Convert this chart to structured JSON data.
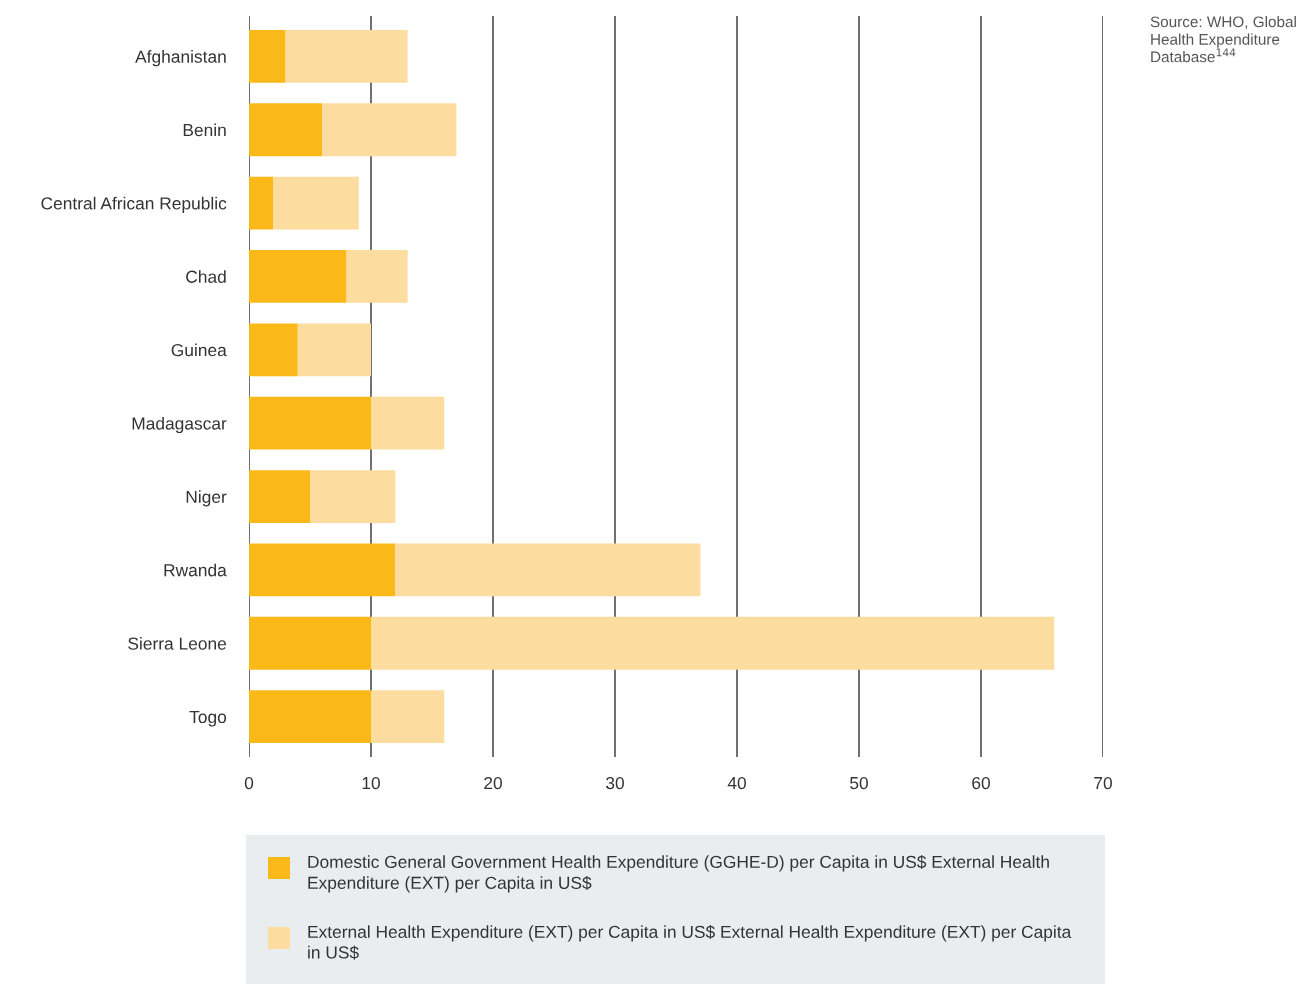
{
  "chart_data": {
    "type": "bar",
    "orientation": "horizontal",
    "stacked": true,
    "categories": [
      "Afghanistan",
      "Benin",
      "Central African Republic",
      "Chad",
      "Guinea",
      "Madagascar",
      "Niger",
      "Rwanda",
      "Sierra Leone",
      "Togo"
    ],
    "series": [
      {
        "name": "Domestic General Government Health Expenditure (GGHE-D) per Capita in US$ External Health Expenditure (EXT) per Capita in US$",
        "color": "#fbb919",
        "values": [
          3,
          6,
          2,
          8,
          4,
          10,
          5,
          12,
          10,
          10
        ]
      },
      {
        "name": "External Health Expenditure (EXT) per Capita in US$ External Health Expenditure (EXT) per Capita in US$",
        "color": "#fddc9f",
        "values": [
          10,
          11,
          7,
          5,
          6,
          6,
          7,
          25,
          56,
          6
        ]
      }
    ],
    "xlim": [
      0,
      70
    ],
    "xticks": [
      0,
      10,
      20,
      30,
      40,
      50,
      60,
      70
    ],
    "grid": "x",
    "legend": "bottom",
    "annotations": [
      "Source: WHO, Global Health Expenditure Database$^{144}$"
    ]
  }
}
